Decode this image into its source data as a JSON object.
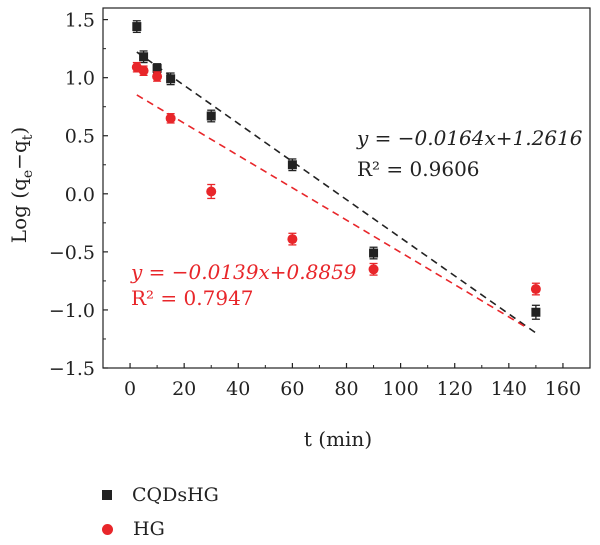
{
  "chart_data": {
    "type": "scatter",
    "ylabel": "Log (q",
    "ylabel_sub1": "e",
    "ylabel_mid": "−q",
    "ylabel_sub2": "t",
    "ylabel_end": ")",
    "xlabel": "t (min)",
    "xlim": [
      -10,
      170
    ],
    "ylim": [
      -1.5,
      1.6
    ],
    "xticks": [
      "0",
      "20",
      "40",
      "60",
      "80",
      "100",
      "120",
      "140",
      "160"
    ],
    "yticks": [
      "1.5",
      "1.0",
      "0.5",
      "0.0",
      "−0.5",
      "−1.0",
      "−1.5"
    ],
    "series": [
      {
        "name": "CQDsHG",
        "color": "#222222",
        "marker": "square",
        "x": [
          2.5,
          5,
          10,
          15,
          30,
          60,
          90,
          150
        ],
        "y": [
          1.44,
          1.18,
          1.08,
          0.99,
          0.67,
          0.25,
          -0.51,
          -1.02
        ],
        "err": [
          0.05,
          0.05,
          0.04,
          0.05,
          0.05,
          0.05,
          0.05,
          0.06
        ],
        "fit": {
          "slope": -0.0164,
          "intercept": 1.2616,
          "x_range": [
            2.5,
            150
          ]
        }
      },
      {
        "name": "HG",
        "color": "#e8262a",
        "marker": "circle",
        "x": [
          2.5,
          5,
          10,
          15,
          30,
          60,
          90,
          150
        ],
        "y": [
          1.09,
          1.06,
          1.01,
          0.65,
          0.02,
          -0.39,
          -0.65,
          -0.82
        ],
        "err": [
          0.04,
          0.04,
          0.04,
          0.04,
          0.06,
          0.05,
          0.05,
          0.05
        ],
        "fit": {
          "slope": -0.0139,
          "intercept": 0.8859,
          "x_range": [
            2.5,
            147
          ]
        }
      }
    ],
    "annotations": {
      "black_eq": "y = −0.0164x+1.2616",
      "black_r2": "R² = 0.9606",
      "red_eq": "y = −0.0139x+0.8859",
      "red_r2": "R² = 0.7947"
    },
    "legend_position": "bottom-left",
    "grid": false
  },
  "legend": {
    "items": [
      "CQDsHG",
      "HG"
    ]
  }
}
